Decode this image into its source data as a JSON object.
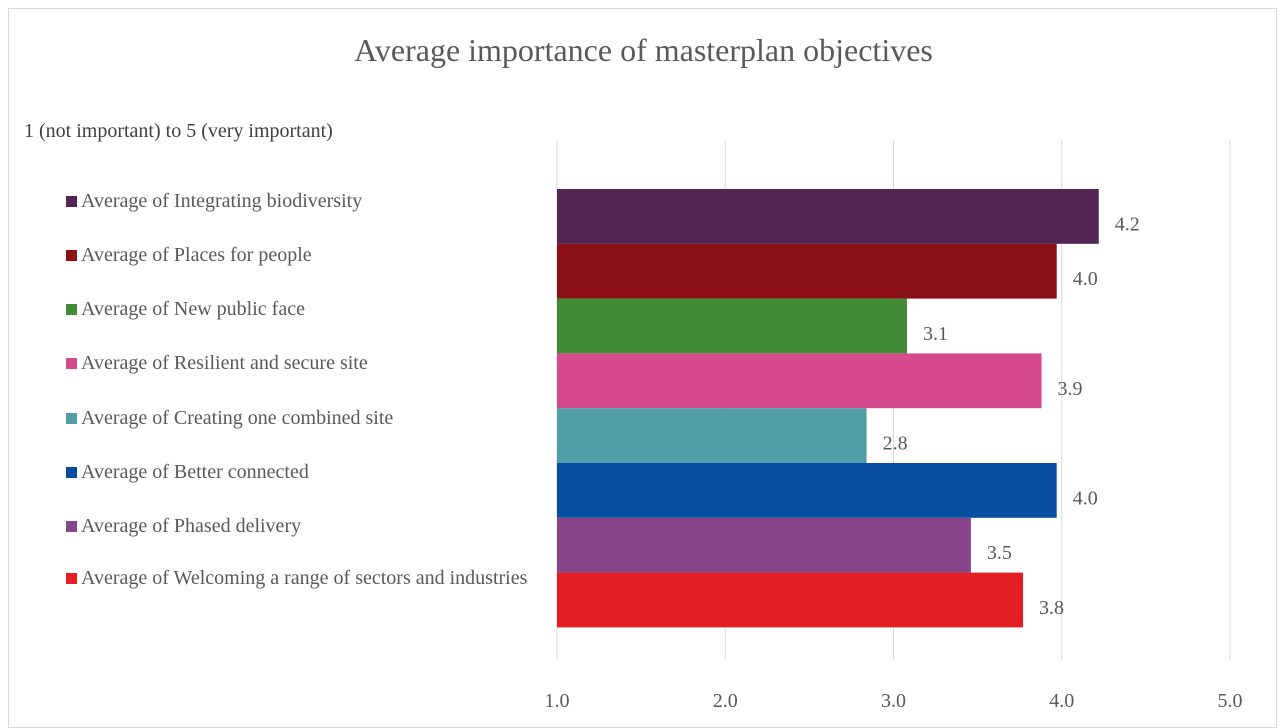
{
  "chart_data": {
    "type": "bar",
    "orientation": "horizontal",
    "title": "Average importance of masterplan objectives",
    "subtitle": "1 (not important) to 5 (very important)",
    "xlim": [
      1,
      5
    ],
    "x_ticks": [
      "1.0",
      "2.0",
      "3.0",
      "4.0",
      "5.0"
    ],
    "grid": true,
    "legend_position": "left",
    "series": [
      {
        "name": "Average of Integrating biodiversity",
        "value": 4.22,
        "label": "4.2",
        "color": "#522552"
      },
      {
        "name": "Average of Places for people",
        "value": 3.97,
        "label": "4.0",
        "color": "#8b1116"
      },
      {
        "name": "Average of New public face",
        "value": 3.08,
        "label": "3.1",
        "color": "#418b34"
      },
      {
        "name": "Average of Resilient and secure site",
        "value": 3.88,
        "label": "3.9",
        "color": "#d64b8e"
      },
      {
        "name": "Average of Creating one combined site",
        "value": 2.84,
        "label": "2.8",
        "color": "#509ea8"
      },
      {
        "name": "Average of Better connected",
        "value": 3.97,
        "label": "4.0",
        "color": "#074ea1"
      },
      {
        "name": "Average of Phased delivery",
        "value": 3.46,
        "label": "3.5",
        "color": "#87468a"
      },
      {
        "name": "Average of Welcoming a range of sectors and industries",
        "value": 3.77,
        "label": "3.8",
        "color": "#e31e24"
      }
    ]
  }
}
